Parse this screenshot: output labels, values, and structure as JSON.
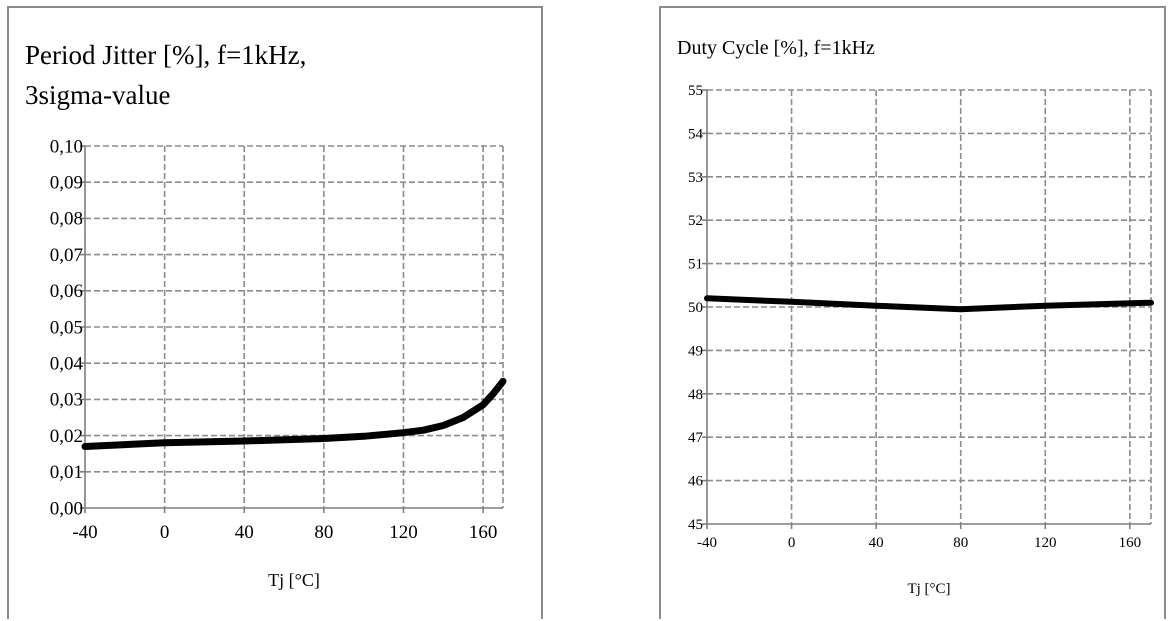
{
  "chart_data": [
    {
      "type": "line",
      "title_lines": [
        "Period Jitter [%], f=1kHz,",
        "3sigma-value"
      ],
      "xlabel": "Tj [°C]",
      "ylabel": "",
      "xlim": [
        -40,
        170
      ],
      "ylim": [
        0,
        0.1
      ],
      "x_ticks": [
        "-40",
        "0",
        "40",
        "80",
        "120",
        "160"
      ],
      "y_ticks": [
        "0,00",
        "0,01",
        "0,02",
        "0,03",
        "0,04",
        "0,05",
        "0,06",
        "0,07",
        "0,08",
        "0,09",
        "0,10"
      ],
      "grid": true,
      "series": [
        {
          "x": [
            -40,
            0,
            40,
            80,
            100,
            120,
            130,
            140,
            150,
            160,
            165,
            170
          ],
          "y": [
            0.017,
            0.018,
            0.0185,
            0.0192,
            0.0198,
            0.0208,
            0.0215,
            0.0228,
            0.025,
            0.0285,
            0.0315,
            0.035
          ]
        }
      ]
    },
    {
      "type": "line",
      "title_lines": [
        "Duty Cycle [%], f=1kHz"
      ],
      "xlabel": "Tj [°C]",
      "ylabel": "",
      "xlim": [
        -40,
        170
      ],
      "ylim": [
        45,
        55
      ],
      "x_ticks": [
        "-40",
        "0",
        "40",
        "80",
        "120",
        "160"
      ],
      "y_ticks": [
        "45",
        "46",
        "47",
        "48",
        "49",
        "50",
        "51",
        "52",
        "53",
        "54",
        "55"
      ],
      "grid": true,
      "series": [
        {
          "x": [
            -40,
            0,
            40,
            80,
            120,
            170
          ],
          "y": [
            50.2,
            50.12,
            50.03,
            49.95,
            50.03,
            50.1
          ]
        }
      ]
    }
  ]
}
